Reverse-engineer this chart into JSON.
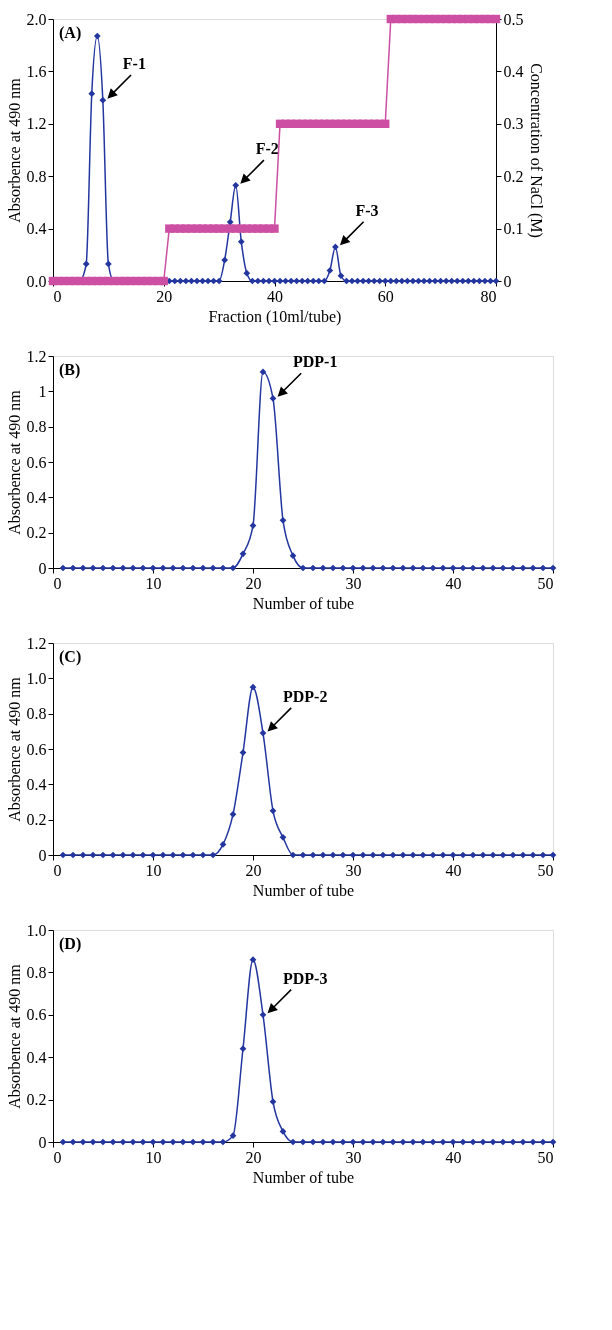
{
  "chart_data": [
    {
      "type": "line",
      "xlabel": "Fraction (10ml/tube)",
      "ylabel": "Absorbence at 490 nm",
      "y2label": "Concentration of NaCl (M)",
      "xlim": [
        0,
        80
      ],
      "xticks": [
        0,
        20,
        40,
        60,
        80
      ],
      "ylim": [
        0,
        2
      ],
      "yticks": [
        {
          "value": 0,
          "label": "0.0"
        },
        0.4,
        0.8,
        1.2,
        1.6,
        {
          "value": 2,
          "label": "2.0"
        }
      ],
      "y2lim": [
        0,
        0.5
      ],
      "y2ticks": [
        {
          "value": 0,
          "label": "0"
        },
        0.1,
        0.2,
        0.3,
        0.4,
        0.5
      ],
      "annotations": [
        "(A)",
        {
          "text": "F-1",
          "x": 9,
          "y": 1.38
        },
        {
          "text": "F-2",
          "x": 33,
          "y": 0.73
        },
        {
          "text": "F-3",
          "x": 51,
          "y": 0.26
        }
      ],
      "series": [
        {
          "color": "#2336a0",
          "marker": "diamond",
          "x": [
            5,
            6,
            7,
            8,
            9,
            10,
            11,
            21,
            22,
            23,
            24,
            25,
            26,
            27,
            28,
            29,
            30,
            31,
            32,
            33,
            34,
            35,
            36,
            37,
            38,
            39,
            40,
            41,
            42,
            43,
            44,
            45,
            46,
            47,
            48,
            49,
            50,
            51,
            52,
            53,
            54,
            55,
            56,
            57,
            58,
            59,
            60,
            61,
            62,
            63,
            64,
            65,
            66,
            67,
            68,
            69,
            70,
            71,
            72,
            73,
            74,
            75,
            76,
            77,
            78,
            79,
            80
          ],
          "values": [
            0,
            0.13,
            1.43,
            1.87,
            1.38,
            0.13,
            0,
            0,
            0,
            0,
            0,
            0,
            0,
            0,
            0,
            0,
            0,
            0.16,
            0.45,
            0.73,
            0.3,
            0.06,
            0,
            0,
            0,
            0,
            0,
            0,
            0,
            0,
            0,
            0,
            0,
            0,
            0,
            0,
            0.08,
            0.26,
            0.04,
            0,
            0,
            0,
            0,
            0,
            0,
            0,
            0,
            0,
            0,
            0,
            0,
            0,
            0,
            0,
            0,
            0,
            0,
            0,
            0,
            0,
            0,
            0,
            0,
            0,
            0,
            0,
            0
          ]
        },
        {
          "color": "#cc4fa3",
          "marker": "square",
          "axis": "y2",
          "x": [
            0,
            1,
            2,
            3,
            4,
            5,
            6,
            7,
            8,
            9,
            10,
            11,
            12,
            13,
            14,
            15,
            16,
            17,
            18,
            19,
            20,
            21,
            22,
            23,
            24,
            25,
            26,
            27,
            28,
            29,
            30,
            31,
            32,
            33,
            34,
            35,
            36,
            37,
            38,
            39,
            40,
            41,
            42,
            43,
            44,
            45,
            46,
            47,
            48,
            49,
            50,
            51,
            52,
            53,
            54,
            55,
            56,
            57,
            58,
            59,
            60,
            61,
            62,
            63,
            64,
            65,
            66,
            67,
            68,
            69,
            70,
            71,
            72,
            73,
            74,
            75,
            76,
            77,
            78,
            79,
            80
          ],
          "values": [
            0,
            0,
            0,
            0,
            0,
            0,
            0,
            0,
            0,
            0,
            0,
            0,
            0,
            0,
            0,
            0,
            0,
            0,
            0,
            0,
            0,
            0.1,
            0.1,
            0.1,
            0.1,
            0.1,
            0.1,
            0.1,
            0.1,
            0.1,
            0.1,
            0.1,
            0.1,
            0.1,
            0.1,
            0.1,
            0.1,
            0.1,
            0.1,
            0.1,
            0.1,
            0.3,
            0.3,
            0.3,
            0.3,
            0.3,
            0.3,
            0.3,
            0.3,
            0.3,
            0.3,
            0.3,
            0.3,
            0.3,
            0.3,
            0.3,
            0.3,
            0.3,
            0.3,
            0.3,
            0.3,
            0.5,
            0.5,
            0.5,
            0.5,
            0.5,
            0.5,
            0.5,
            0.5,
            0.5,
            0.5,
            0.5,
            0.5,
            0.5,
            0.5,
            0.5,
            0.5,
            0.5,
            0.5,
            0.5,
            0.5
          ]
        }
      ]
    },
    {
      "type": "line",
      "xlabel": "Number of tube",
      "ylabel": "Absorbence at 490 nm",
      "xlim": [
        0,
        50
      ],
      "xticks": [
        0,
        10,
        20,
        30,
        40,
        50
      ],
      "ylim": [
        0,
        1.2
      ],
      "yticks": [
        {
          "value": 0,
          "label": "0"
        },
        0.2,
        0.4,
        0.6,
        0.8,
        1,
        1.2
      ],
      "annotations": [
        "(B)",
        {
          "text": "PDP-1",
          "x": 22,
          "y": 0.96
        }
      ],
      "x": [
        1,
        2,
        3,
        4,
        5,
        6,
        7,
        8,
        9,
        10,
        11,
        12,
        13,
        14,
        15,
        16,
        17,
        18,
        19,
        20,
        21,
        22,
        23,
        24,
        25,
        26,
        27,
        28,
        29,
        30,
        31,
        32,
        33,
        34,
        35,
        36,
        37,
        38,
        39,
        40,
        41,
        42,
        43,
        44,
        45,
        46,
        47,
        48,
        49,
        50
      ],
      "series": [
        {
          "color": "#2336a0",
          "marker": "diamond",
          "values": [
            0,
            0,
            0,
            0,
            0,
            0,
            0,
            0,
            0,
            0,
            0,
            0,
            0,
            0,
            0,
            0,
            0,
            0,
            0.08,
            0.24,
            1.11,
            0.96,
            0.27,
            0.07,
            0,
            0,
            0,
            0,
            0,
            0,
            0,
            0,
            0,
            0,
            0,
            0,
            0,
            0,
            0,
            0,
            0,
            0,
            0,
            0,
            0,
            0,
            0,
            0,
            0,
            0
          ]
        }
      ]
    },
    {
      "type": "line",
      "xlabel": "Number of tube",
      "ylabel": "Absorbence at 490 nm",
      "xlim": [
        0,
        50
      ],
      "xticks": [
        0,
        10,
        20,
        30,
        40,
        50
      ],
      "ylim": [
        0,
        1.2
      ],
      "yticks": [
        {
          "value": 0,
          "label": "0"
        },
        0.2,
        0.4,
        0.6,
        0.8,
        {
          "value": 1,
          "label": "1.0"
        },
        1.2
      ],
      "annotations": [
        "(C)",
        {
          "text": "PDP-2",
          "x": 21,
          "y": 0.69
        }
      ],
      "x": [
        1,
        2,
        3,
        4,
        5,
        6,
        7,
        8,
        9,
        10,
        11,
        12,
        13,
        14,
        15,
        16,
        17,
        18,
        19,
        20,
        21,
        22,
        23,
        24,
        25,
        26,
        27,
        28,
        29,
        30,
        31,
        32,
        33,
        34,
        35,
        36,
        37,
        38,
        39,
        40,
        41,
        42,
        43,
        44,
        45,
        46,
        47,
        48,
        49,
        50
      ],
      "series": [
        {
          "color": "#2336a0",
          "marker": "diamond",
          "values": [
            0,
            0,
            0,
            0,
            0,
            0,
            0,
            0,
            0,
            0,
            0,
            0,
            0,
            0,
            0,
            0,
            0.06,
            0.23,
            0.58,
            0.95,
            0.69,
            0.25,
            0.1,
            0,
            0,
            0,
            0,
            0,
            0,
            0,
            0,
            0,
            0,
            0,
            0,
            0,
            0,
            0,
            0,
            0,
            0,
            0,
            0,
            0,
            0,
            0,
            0,
            0,
            0,
            0
          ]
        }
      ]
    },
    {
      "type": "line",
      "xlabel": "Number of tube",
      "ylabel": "Absorbence at 490 nm",
      "xlim": [
        0,
        50
      ],
      "xticks": [
        0,
        10,
        20,
        30,
        40,
        50
      ],
      "ylim": [
        0,
        1
      ],
      "yticks": [
        {
          "value": 0,
          "label": "0"
        },
        0.2,
        0.4,
        0.6,
        0.8,
        {
          "value": 1,
          "label": "1.0"
        }
      ],
      "annotations": [
        "(D)",
        {
          "text": "PDP-3",
          "x": 21,
          "y": 0.6
        }
      ],
      "x": [
        1,
        2,
        3,
        4,
        5,
        6,
        7,
        8,
        9,
        10,
        11,
        12,
        13,
        14,
        15,
        16,
        17,
        18,
        19,
        20,
        21,
        22,
        23,
        24,
        25,
        26,
        27,
        28,
        29,
        30,
        31,
        32,
        33,
        34,
        35,
        36,
        37,
        38,
        39,
        40,
        41,
        42,
        43,
        44,
        45,
        46,
        47,
        48,
        49,
        50
      ],
      "series": [
        {
          "color": "#2336a0",
          "marker": "diamond",
          "values": [
            0,
            0,
            0,
            0,
            0,
            0,
            0,
            0,
            0,
            0,
            0,
            0,
            0,
            0,
            0,
            0,
            0,
            0.03,
            0.44,
            0.86,
            0.6,
            0.19,
            0.05,
            0,
            0,
            0,
            0,
            0,
            0,
            0,
            0,
            0,
            0,
            0,
            0,
            0,
            0,
            0,
            0,
            0,
            0,
            0,
            0,
            0,
            0,
            0,
            0,
            0,
            0,
            0
          ]
        }
      ]
    }
  ]
}
